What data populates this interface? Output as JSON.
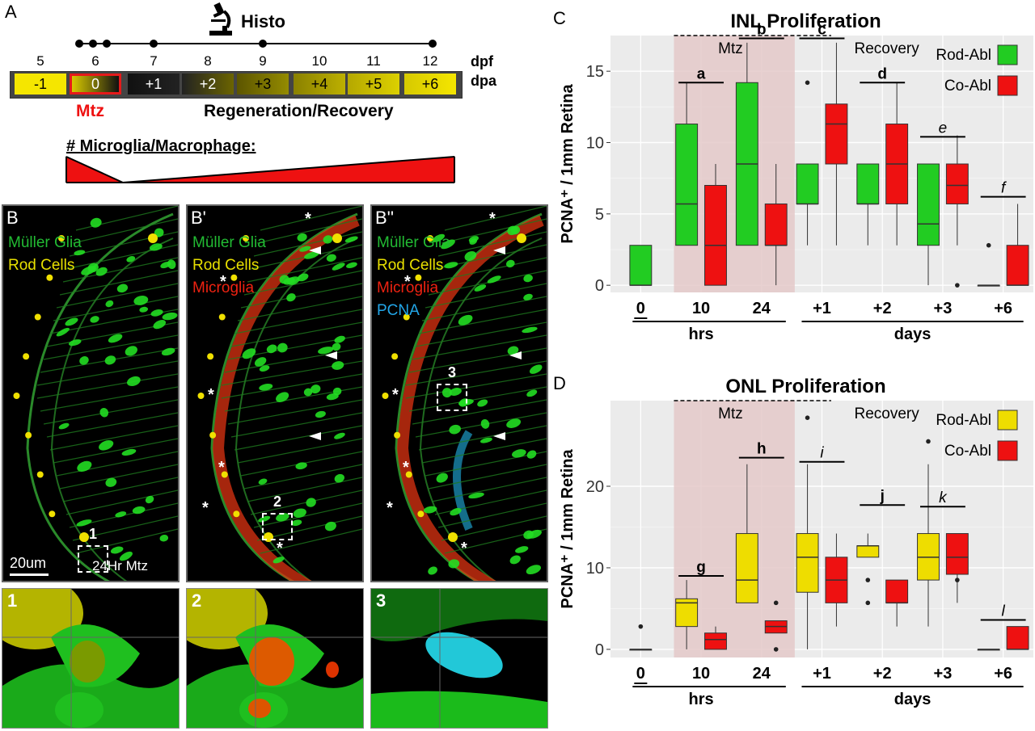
{
  "panel_a": {
    "letter": "A",
    "histo_label": "Histo",
    "dpf_values": [
      "5",
      "6",
      "7",
      "8",
      "9",
      "10",
      "11",
      "12"
    ],
    "dpf_label": "dpf",
    "dpa_values": [
      "-1",
      "0",
      "+1",
      "+2",
      "+3",
      "+4",
      "+5",
      "+6"
    ],
    "dpa_label": "dpa",
    "mtz_label": "Mtz",
    "regen_label": "Regeneration/Recovery",
    "microglia_label": "# Microglia/Macrophage:",
    "colors": {
      "yellow": "#f5e600",
      "red": "#e61a1a",
      "black": "#111111"
    }
  },
  "panel_b": {
    "panels": [
      {
        "letter": "B",
        "labels": [
          {
            "text": "Müller Glia",
            "color": "#22bb33"
          },
          {
            "text": "Rod Cells",
            "color": "#e8e000"
          }
        ],
        "box": "1"
      },
      {
        "letter": "B'",
        "labels": [
          {
            "text": "Müller Glia",
            "color": "#22bb33"
          },
          {
            "text": "Rod Cells",
            "color": "#e8e000"
          },
          {
            "text": "Microglia",
            "color": "#ee2211"
          }
        ],
        "box": "2"
      },
      {
        "letter": "B''",
        "labels": [
          {
            "text": "Müller Glia",
            "color": "#22bb33"
          },
          {
            "text": "Rod Cells",
            "color": "#e8e000"
          },
          {
            "text": "Microglia",
            "color": "#ee2211"
          },
          {
            "text": "PCNA",
            "color": "#22a6e8"
          }
        ],
        "box": "3"
      }
    ],
    "scale_bar": "20um",
    "condition": "24Hr Mtz",
    "zooms": [
      "1",
      "2",
      "3"
    ]
  },
  "chart_data": [
    {
      "panel": "C",
      "type": "box",
      "title": "INL Proliferation",
      "ylabel": "PCNA⁺ / 1mm Retina",
      "ylim": [
        -0.5,
        17.5
      ],
      "yticks": [
        0,
        5,
        10,
        15
      ],
      "categories": [
        "0",
        "10",
        "24",
        "+1",
        "+2",
        "+3",
        "+6"
      ],
      "group_labels": [
        "hrs",
        "days"
      ],
      "regions": [
        "Mtz",
        "Recovery"
      ],
      "legend": [
        "Rod-Abl",
        "Co-Abl"
      ],
      "series_colors": [
        "#22cc22",
        "#ee1111"
      ],
      "significance": [
        "a",
        "b",
        "c",
        "d",
        "e",
        "f"
      ],
      "series": [
        {
          "name": "Rod-Abl",
          "boxes": [
            {
              "cat": "0",
              "min": 0,
              "q1": 0,
              "median": 0,
              "q3": 2.8,
              "max": 2.8,
              "outliers": []
            },
            {
              "cat": "10",
              "min": 2.8,
              "q1": 2.8,
              "median": 5.7,
              "q3": 11.3,
              "max": 14.2,
              "outliers": []
            },
            {
              "cat": "24",
              "min": 2.8,
              "q1": 2.8,
              "median": 8.5,
              "q3": 14.2,
              "max": 17,
              "outliers": []
            },
            {
              "cat": "+1",
              "min": 2.8,
              "q1": 5.7,
              "median": 5.7,
              "q3": 8.5,
              "max": 8.5,
              "outliers": [
                14.2
              ]
            },
            {
              "cat": "+2",
              "min": 2.8,
              "q1": 5.7,
              "median": 5.7,
              "q3": 8.5,
              "max": 8.5,
              "outliers": []
            },
            {
              "cat": "+3",
              "min": 0,
              "q1": 2.8,
              "median": 4.3,
              "q3": 8.5,
              "max": 8.5,
              "outliers": []
            },
            {
              "cat": "+6",
              "min": 0,
              "q1": 0,
              "median": 0,
              "q3": 0,
              "max": 0,
              "outliers": [
                2.8
              ]
            }
          ]
        },
        {
          "name": "Co-Abl",
          "boxes": [
            {
              "cat": "10",
              "min": 0,
              "q1": 0,
              "median": 2.8,
              "q3": 7,
              "max": 8.5,
              "outliers": []
            },
            {
              "cat": "24",
              "min": 0,
              "q1": 2.8,
              "median": 2.8,
              "q3": 5.7,
              "max": 8.5,
              "outliers": []
            },
            {
              "cat": "+1",
              "min": 2.8,
              "q1": 8.5,
              "median": 11.3,
              "q3": 12.7,
              "max": 17,
              "outliers": []
            },
            {
              "cat": "+2",
              "min": 2.8,
              "q1": 5.7,
              "median": 8.5,
              "q3": 11.3,
              "max": 14.2,
              "outliers": []
            },
            {
              "cat": "+3",
              "min": 2.8,
              "q1": 5.7,
              "median": 7,
              "q3": 8.5,
              "max": 10.5,
              "outliers": [
                0
              ]
            },
            {
              "cat": "+6",
              "min": 0,
              "q1": 0,
              "median": 0,
              "q3": 2.8,
              "max": 5.7,
              "outliers": []
            }
          ]
        }
      ]
    },
    {
      "panel": "D",
      "type": "box",
      "title": "ONL Proliferation",
      "ylabel": "PCNA⁺ / 1mm Retina",
      "ylim": [
        -1,
        30.5
      ],
      "yticks": [
        0,
        10,
        20
      ],
      "categories": [
        "0",
        "10",
        "24",
        "+1",
        "+2",
        "+3",
        "+6"
      ],
      "group_labels": [
        "hrs",
        "days"
      ],
      "regions": [
        "Mtz",
        "Recovery"
      ],
      "legend": [
        "Rod-Abl",
        "Co-Abl"
      ],
      "series_colors": [
        "#eedd00",
        "#ee1111"
      ],
      "significance": [
        "g",
        "h",
        "i",
        "j",
        "k",
        "l"
      ],
      "series": [
        {
          "name": "Rod-Abl",
          "boxes": [
            {
              "cat": "0",
              "min": 0,
              "q1": 0,
              "median": 0,
              "q3": 0,
              "max": 0,
              "outliers": [
                2.8
              ]
            },
            {
              "cat": "10",
              "min": 0,
              "q1": 2.8,
              "median": 5.7,
              "q3": 6.2,
              "max": 8.5,
              "outliers": []
            },
            {
              "cat": "24",
              "min": 5.7,
              "q1": 5.7,
              "median": 8.5,
              "q3": 14.2,
              "max": 22.7,
              "outliers": []
            },
            {
              "cat": "+1",
              "min": 0,
              "q1": 7,
              "median": 11.3,
              "q3": 14.2,
              "max": 22.7,
              "outliers": [
                28.4
              ]
            },
            {
              "cat": "+2",
              "min": 11.3,
              "q1": 11.3,
              "median": 12.7,
              "q3": 12.7,
              "max": 14.2,
              "outliers": [
                5.7,
                8.5
              ]
            },
            {
              "cat": "+3",
              "min": 2.8,
              "q1": 8.5,
              "median": 11.3,
              "q3": 14.2,
              "max": 22.7,
              "outliers": [
                25.5
              ]
            },
            {
              "cat": "+6",
              "min": 0,
              "q1": 0,
              "median": 0,
              "q3": 0,
              "max": 0,
              "outliers": []
            }
          ]
        },
        {
          "name": "Co-Abl",
          "boxes": [
            {
              "cat": "10",
              "min": 0,
              "q1": 0,
              "median": 1.2,
              "q3": 2,
              "max": 2.8,
              "outliers": []
            },
            {
              "cat": "24",
              "min": 2,
              "q1": 2,
              "median": 2.8,
              "q3": 3.5,
              "max": 3.5,
              "outliers": [
                0,
                5.7
              ]
            },
            {
              "cat": "+1",
              "min": 2.8,
              "q1": 5.7,
              "median": 8.5,
              "q3": 11.3,
              "max": 14.2,
              "outliers": []
            },
            {
              "cat": "+2",
              "min": 2.8,
              "q1": 5.7,
              "median": 5.7,
              "q3": 8.5,
              "max": 8.5,
              "outliers": []
            },
            {
              "cat": "+3",
              "min": 5.7,
              "q1": 9.2,
              "median": 11.3,
              "q3": 14.2,
              "max": 14.2,
              "outliers": [
                8.5
              ]
            },
            {
              "cat": "+6",
              "min": 0,
              "q1": 0,
              "median": 0,
              "q3": 2.8,
              "max": 2.8,
              "outliers": []
            }
          ]
        }
      ]
    }
  ]
}
